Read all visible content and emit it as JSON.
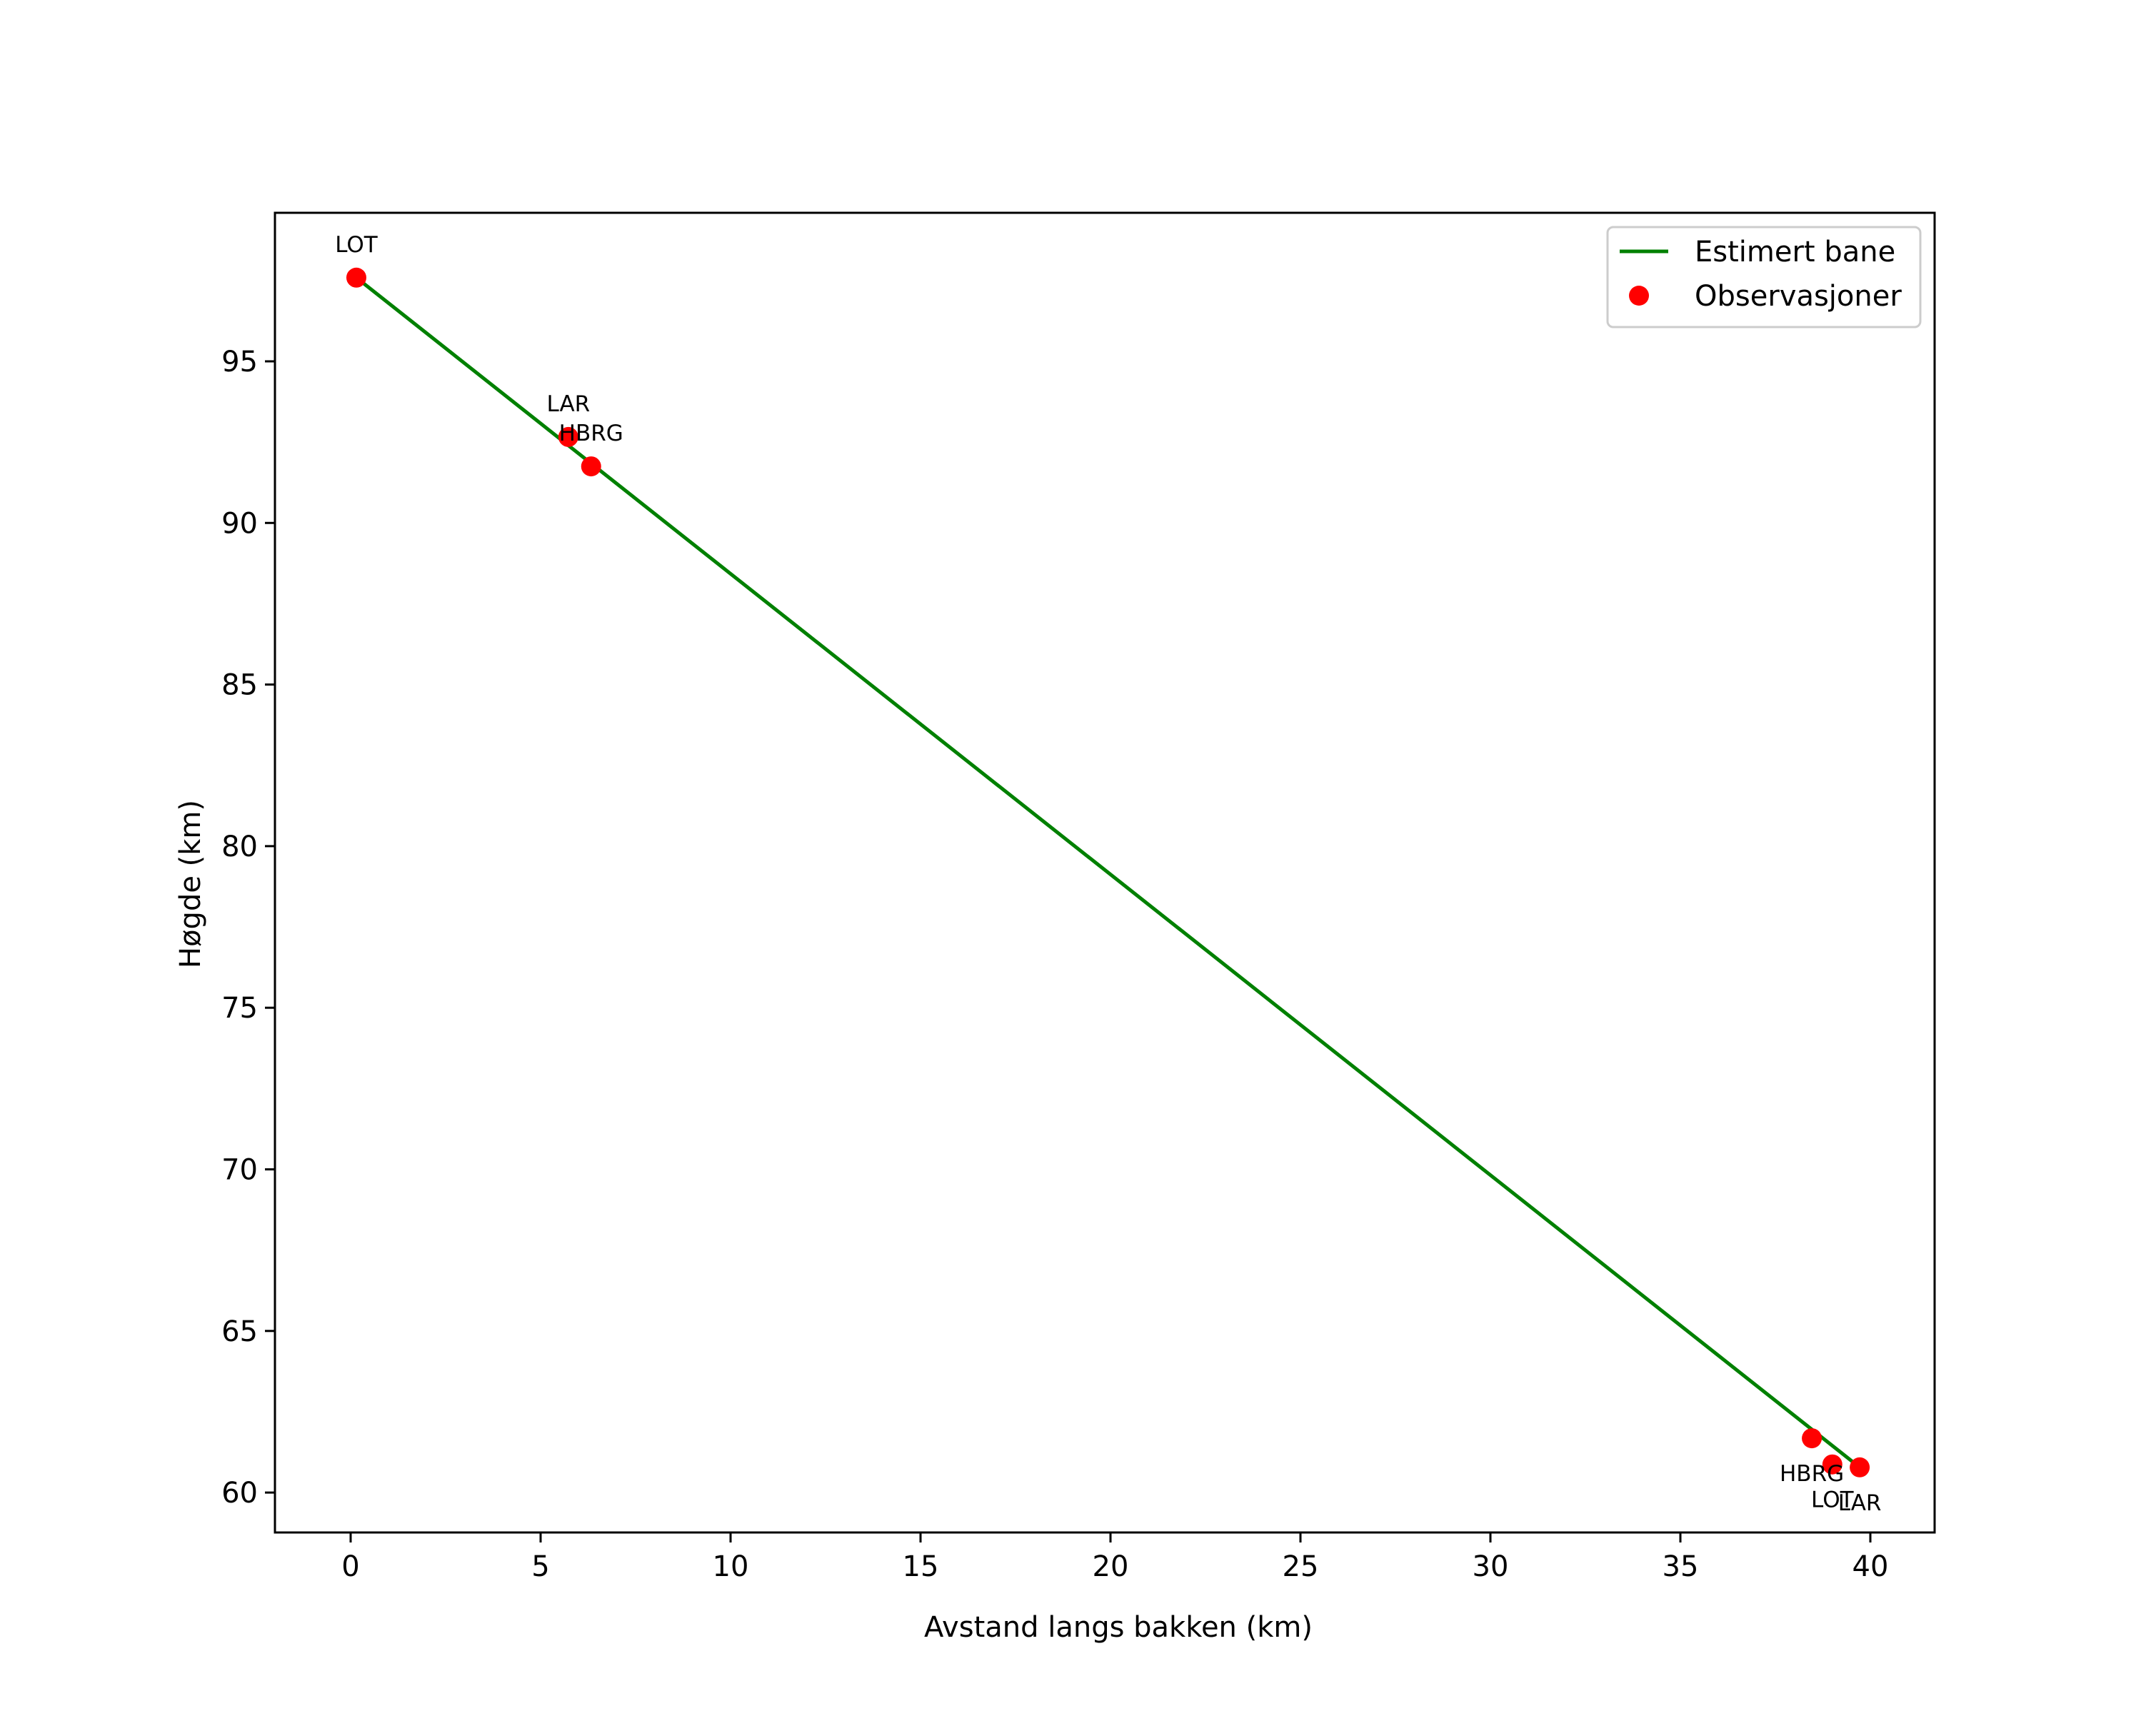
{
  "chart_data": {
    "type": "line",
    "title": "",
    "xlabel": "Avstand langs bakken (km)",
    "ylabel": "Høgde (km)",
    "xlim": [
      -2.0,
      41.7
    ],
    "ylim": [
      58.76,
      99.6
    ],
    "xticks": [
      0,
      5,
      10,
      15,
      20,
      25,
      30,
      35,
      40
    ],
    "yticks": [
      60,
      65,
      70,
      75,
      80,
      85,
      90,
      95
    ],
    "grid": false,
    "legend_position": "upper right",
    "series": [
      {
        "name": "Estimert bane",
        "type": "line",
        "color": "#008000",
        "x": [
          0.15,
          39.72
        ],
        "y": [
          97.59,
          60.78
        ]
      },
      {
        "name": "Observasjoner",
        "type": "scatter",
        "color": "#ff0000",
        "points": [
          {
            "label": "LOT",
            "x": 0.15,
            "y": 97.59,
            "label_pos": "above"
          },
          {
            "label": "LAR",
            "x": 5.73,
            "y": 92.66,
            "label_pos": "above"
          },
          {
            "label": "HBRG",
            "x": 6.33,
            "y": 91.75,
            "label_pos": "above"
          },
          {
            "label": "HBRG",
            "x": 38.46,
            "y": 61.68,
            "label_pos": "below"
          },
          {
            "label": "LOT",
            "x": 39.0,
            "y": 60.87,
            "label_pos": "below"
          },
          {
            "label": "LAR",
            "x": 39.72,
            "y": 60.78,
            "label_pos": "below"
          }
        ]
      }
    ],
    "legend": [
      {
        "label": "Estimert bane",
        "marker": "line",
        "color": "#008000"
      },
      {
        "label": "Observasjoner",
        "marker": "dot",
        "color": "#ff0000"
      }
    ]
  }
}
